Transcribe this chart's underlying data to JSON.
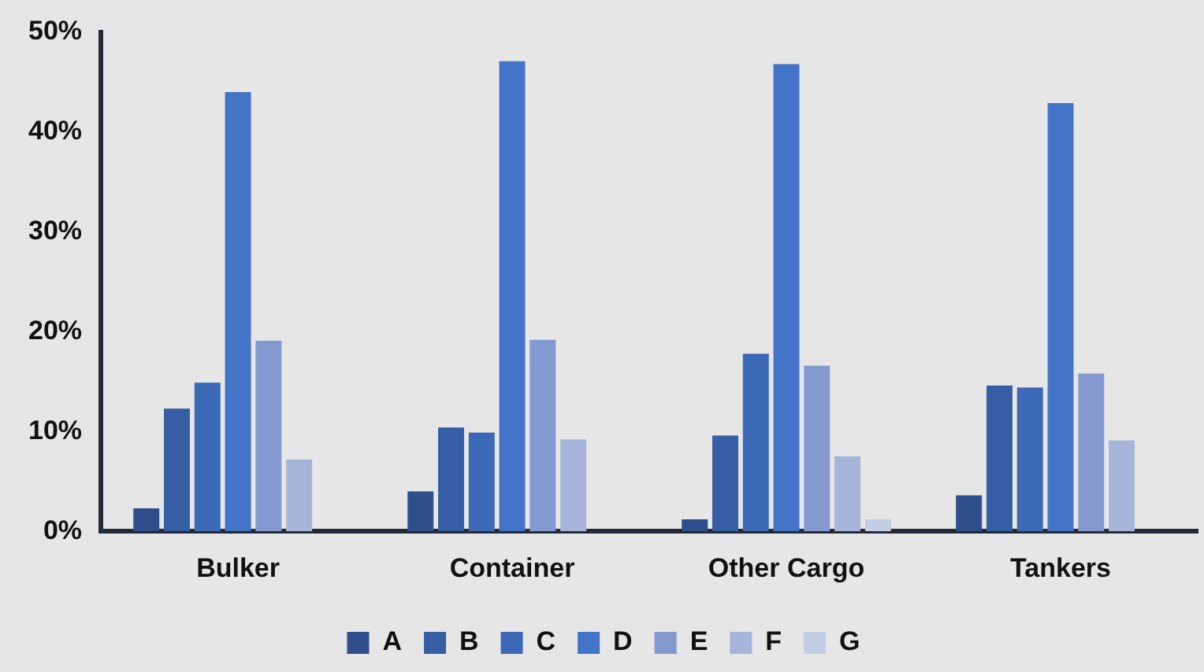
{
  "chart_data": {
    "type": "bar",
    "categories": [
      "Bulker",
      "Container",
      "Other Cargo",
      "Tankers"
    ],
    "series": [
      {
        "name": "A",
        "color": "#2f4e8c",
        "values": [
          2.3,
          4.0,
          1.2,
          3.6
        ]
      },
      {
        "name": "B",
        "color": "#355ea4",
        "values": [
          12.3,
          10.4,
          9.6,
          14.6
        ]
      },
      {
        "name": "C",
        "color": "#3c69b5",
        "values": [
          14.9,
          9.9,
          17.8,
          14.4
        ]
      },
      {
        "name": "D",
        "color": "#4474c7",
        "values": [
          44.0,
          47.1,
          46.8,
          42.9
        ]
      },
      {
        "name": "E",
        "color": "#8399d0",
        "values": [
          19.1,
          19.2,
          16.6,
          15.8
        ]
      },
      {
        "name": "F",
        "color": "#a6b4da",
        "values": [
          7.2,
          9.2,
          7.5,
          9.1
        ]
      },
      {
        "name": "G",
        "color": "#c3cde6",
        "values": [
          0,
          0,
          1.2,
          0
        ]
      }
    ],
    "ylim": [
      0,
      50
    ],
    "yticks": [
      {
        "value": 0,
        "label": "0%"
      },
      {
        "value": 10,
        "label": "10%"
      },
      {
        "value": 20,
        "label": "20%"
      },
      {
        "value": 30,
        "label": "30%"
      },
      {
        "value": 40,
        "label": "40%"
      },
      {
        "value": 50,
        "label": "50%"
      }
    ],
    "grid": false,
    "legend": "bottom"
  }
}
